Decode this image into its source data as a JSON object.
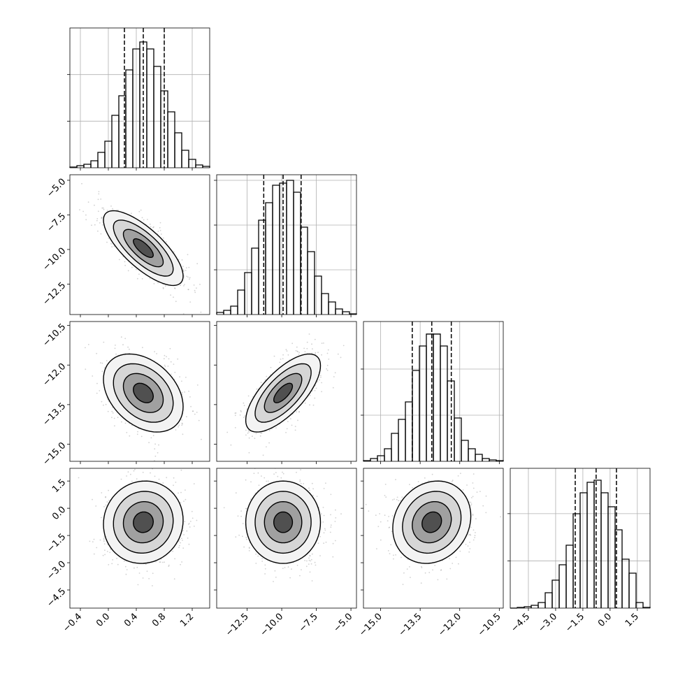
{
  "chart_data": {
    "type": "corner",
    "diagonal_grid": true,
    "contour_sigmas": [
      0.5,
      1,
      1.5,
      2
    ],
    "params": [
      {
        "lim": [
          -0.55,
          1.45
        ],
        "ticks": [
          {
            "value": -0.4,
            "label": "−0.4"
          },
          {
            "value": 0,
            "label": "0.0"
          },
          0.4,
          0.8,
          1.2
        ],
        "quantiles": [
          0.23,
          0.5,
          0.8
        ],
        "bins": [
          -0.55,
          -0.45,
          -0.35,
          -0.25,
          -0.15,
          -0.05,
          0.05,
          0.15,
          0.25,
          0.35,
          0.45,
          0.55,
          0.65,
          0.75,
          0.85,
          0.95,
          1.05,
          1.15,
          1.25,
          1.35,
          1.45
        ],
        "counts": [
          15,
          45,
          75,
          150,
          330,
          570,
          1125,
          1545,
          2100,
          2550,
          2700,
          2550,
          2175,
          1650,
          1200,
          750,
          375,
          180,
          60,
          30
        ],
        "hist_ylim": [
          0,
          3000
        ],
        "hist_yticks": [
          1000,
          2000
        ]
      },
      {
        "lim": [
          -14.7,
          -4.6
        ],
        "ticks": [
          {
            "value": -12.5,
            "label": "−12.5"
          },
          {
            "value": -10,
            "label": "−10.0"
          },
          {
            "value": -7.5,
            "label": "−7.5"
          },
          {
            "value": -5,
            "label": "−5.0"
          }
        ],
        "quantiles": [
          -11.3,
          -9.9,
          -8.6
        ],
        "bins": [
          -14.7,
          -14.195,
          -13.69,
          -13.185,
          -12.68,
          -12.175,
          -11.67,
          -11.165,
          -10.66,
          -10.155,
          -9.65,
          -9.145,
          -8.64,
          -8.135,
          -7.63,
          -7.125,
          -6.62,
          -6.115,
          -5.61,
          -5.105,
          -4.6
        ],
        "counts": [
          47,
          94,
          188,
          547,
          938,
          1484,
          2109,
          2500,
          2891,
          2938,
          3000,
          2734,
          1953,
          1406,
          859,
          469,
          281,
          125,
          63,
          16
        ],
        "hist_ylim": [
          0,
          3125
        ],
        "hist_yticks": [
          1000,
          2000,
          3000
        ]
      },
      {
        "lim": [
          -15.65,
          -10.35
        ],
        "ticks": [
          {
            "value": -15,
            "label": "−15.0"
          },
          {
            "value": -13.5,
            "label": "−13.5"
          },
          {
            "value": -12,
            "label": "−12.0"
          },
          {
            "value": -10.5,
            "label": "−10.5"
          }
        ],
        "quantiles": [
          -13.8,
          -13.06,
          -12.32
        ],
        "bins": [
          -15.65,
          -15.385,
          -15.12,
          -14.855,
          -14.59,
          -14.325,
          -14.06,
          -13.795,
          -13.53,
          -13.265,
          -13.0,
          -12.735,
          -12.47,
          -12.205,
          -11.94,
          -11.675,
          -11.41,
          -11.145,
          -10.88,
          -10.615,
          -10.35
        ],
        "counts": [
          15,
          61,
          121,
          273,
          606,
          909,
          1288,
          1970,
          2500,
          2758,
          2758,
          2500,
          1742,
          939,
          455,
          273,
          152,
          61,
          30,
          15
        ],
        "hist_ylim": [
          0,
          3030
        ],
        "hist_yticks": [
          1000,
          2000
        ]
      },
      {
        "lim": [
          -5.5,
          2.2
        ],
        "ticks": [
          {
            "value": -4.5,
            "label": "−4.5"
          },
          {
            "value": -3,
            "label": "−3.0"
          },
          {
            "value": -1.5,
            "label": "−1.5"
          },
          {
            "value": 0,
            "label": "0.0"
          },
          1.5
        ],
        "quantiles": [
          -1.92,
          -0.77,
          0.35
        ],
        "bins": [
          -5.5,
          -5.115,
          -4.73,
          -4.345,
          -3.96,
          -3.575,
          -3.19,
          -2.805,
          -2.42,
          -2.035,
          -1.65,
          -1.265,
          -0.88,
          -0.495,
          -0.11,
          0.275,
          0.66,
          1.045,
          1.43,
          1.815,
          2.2
        ],
        "counts": [
          0,
          15,
          30,
          59,
          118,
          326,
          592,
          918,
          1332,
          1998,
          2442,
          2664,
          2708,
          2442,
          2146,
          1658,
          1036,
          740,
          118,
          15
        ],
        "hist_ylim": [
          0,
          2960
        ],
        "hist_yticks": [
          1000,
          2000
        ]
      }
    ],
    "pairs": [
      {
        "x": 0,
        "y": 1,
        "corr": -0.75
      },
      {
        "x": 0,
        "y": 2,
        "corr": -0.35
      },
      {
        "x": 1,
        "y": 2,
        "corr": 0.7
      },
      {
        "x": 0,
        "y": 3,
        "corr": 0.05
      },
      {
        "x": 1,
        "y": 3,
        "corr": 0.0
      },
      {
        "x": 2,
        "y": 3,
        "corr": 0.15
      }
    ]
  }
}
